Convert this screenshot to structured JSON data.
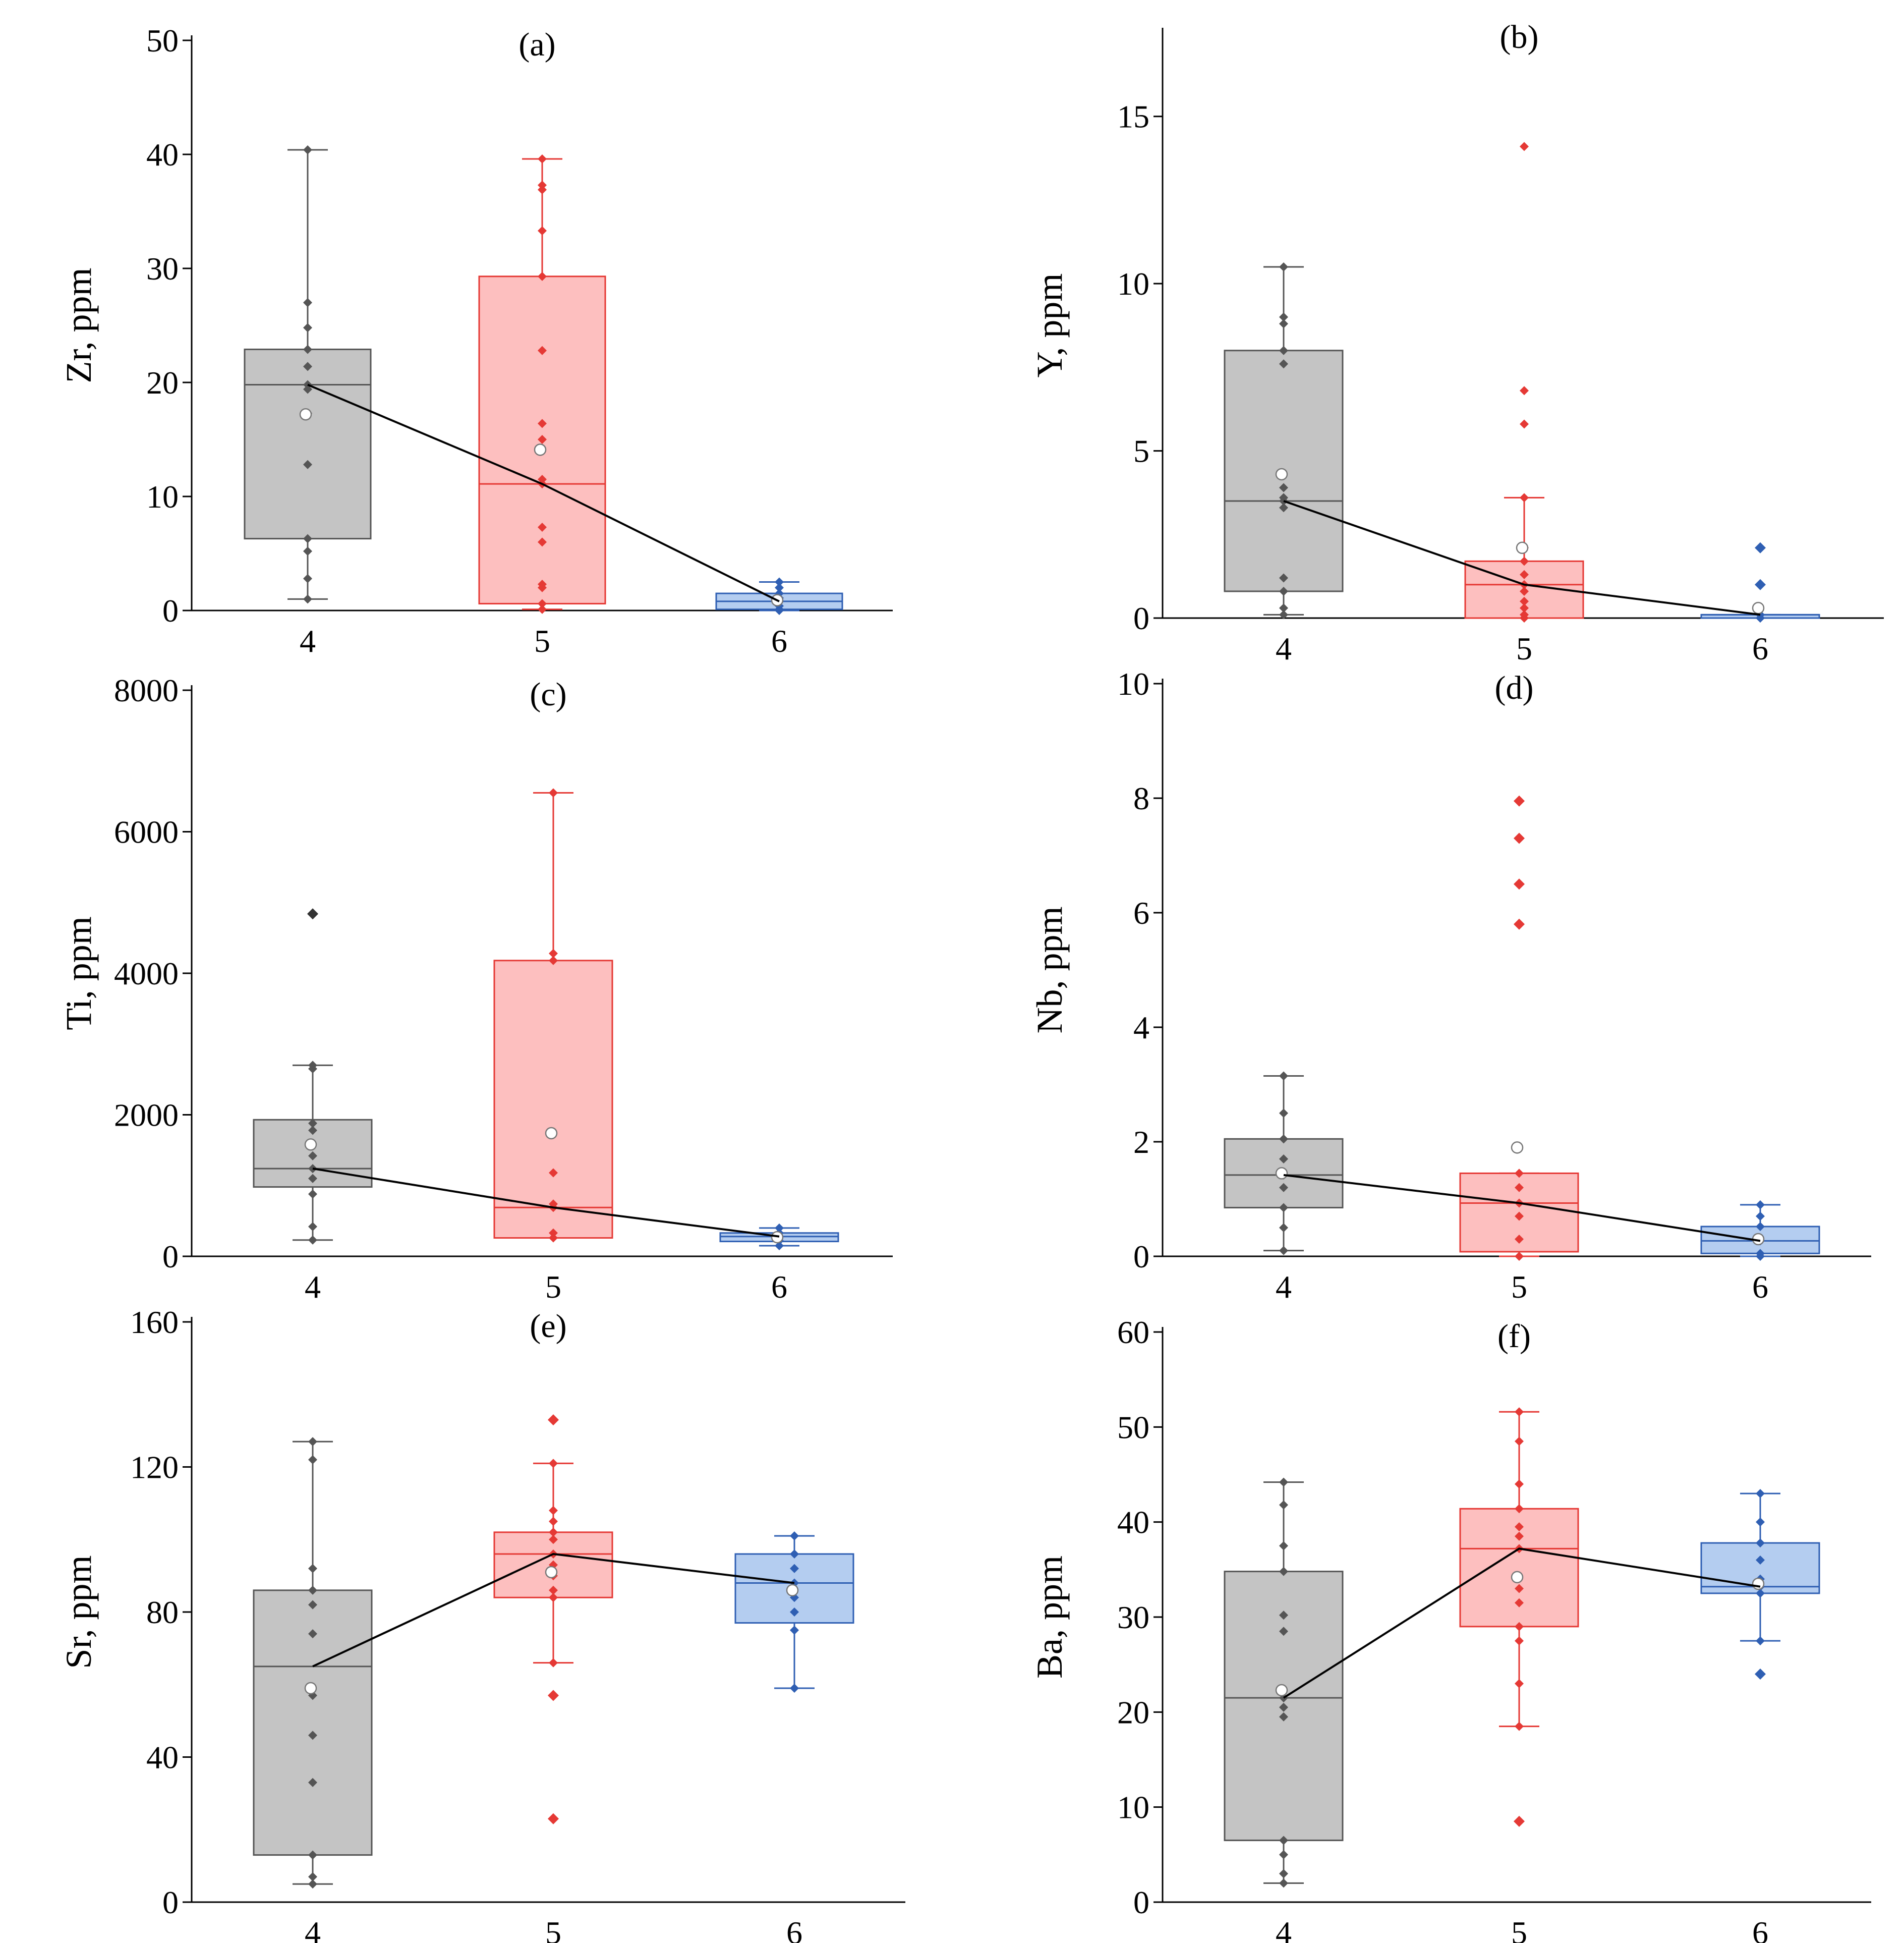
{
  "chart_data": [
    {
      "type": "box",
      "title": "(a)",
      "ylabel": "Zr, ppm",
      "categories": [
        "4",
        "5",
        "6"
      ],
      "yticks": [
        "0",
        "10",
        "20",
        "30",
        "40",
        "50"
      ],
      "ylim": [
        0,
        50
      ],
      "colors": {
        "4": "#555555",
        "5": "#e53935",
        "6": "#2f5fb3"
      },
      "fills": {
        "4": "#c4c4c4",
        "5": "#fdbfbf",
        "6": "#b4cdf0"
      },
      "boxes": [
        {
          "category": "4",
          "whisker_low": 1.0,
          "q1": 6.3,
          "median": 19.8,
          "q3": 22.9,
          "whisker_high": 40.4,
          "mean": 17.2,
          "points": [
            1.0,
            2.8,
            5.2,
            6.3,
            12.8,
            17.3,
            19.4,
            19.8,
            21.4,
            22.9,
            24.8,
            27.0,
            40.4
          ]
        },
        {
          "category": "5",
          "whisker_low": 0.1,
          "q1": 0.6,
          "median": 11.1,
          "q3": 29.3,
          "whisker_high": 39.6,
          "mean": 14.1,
          "points": [
            0.1,
            0.6,
            2.0,
            2.3,
            6.0,
            7.3,
            11.1,
            11.5,
            15.0,
            16.4,
            22.8,
            29.3,
            33.3,
            36.9,
            37.3,
            39.6
          ]
        },
        {
          "category": "6",
          "whisker_low": 0.0,
          "q1": 0.1,
          "median": 0.8,
          "q3": 1.5,
          "whisker_high": 2.5,
          "mean": 0.9,
          "points": [
            0.0,
            0.1,
            0.4,
            0.8,
            1.1,
            1.5,
            2.0,
            2.5
          ]
        }
      ],
      "mean_line": [
        19.8,
        11.1,
        0.8
      ]
    },
    {
      "type": "box",
      "title": "(b)",
      "ylabel": "Y, ppm",
      "categories": [
        "4",
        "5",
        "6"
      ],
      "yticks": [
        "0",
        "5",
        "10",
        "15"
      ],
      "ylim": [
        0,
        17.5
      ],
      "colors": {
        "4": "#555555",
        "5": "#e53935",
        "6": "#2f5fb3"
      },
      "fills": {
        "4": "#c4c4c4",
        "5": "#fdbfbf",
        "6": "#b4cdf0"
      },
      "boxes": [
        {
          "category": "4",
          "whisker_low": 0.1,
          "q1": 0.8,
          "median": 3.5,
          "q3": 8.0,
          "whisker_high": 10.5,
          "mean": 4.3,
          "points": [
            0.1,
            0.3,
            0.8,
            1.2,
            3.3,
            3.5,
            3.6,
            3.9,
            7.6,
            8.0,
            8.8,
            9.0,
            10.5
          ]
        },
        {
          "category": "5",
          "whisker_low": 0.0,
          "q1": 0.0,
          "median": 1.0,
          "q3": 1.7,
          "whisker_high": 3.6,
          "mean": 2.1,
          "points": [
            0.0,
            0.1,
            0.3,
            0.5,
            0.8,
            1.0,
            1.3,
            1.7,
            2.1,
            3.6,
            5.8,
            6.8,
            14.1
          ]
        },
        {
          "category": "6",
          "whisker_low": 0.0,
          "q1": 0.0,
          "median": 0.1,
          "q3": 0.1,
          "whisker_high": 0.1,
          "mean": 0.3,
          "points": [
            0.0,
            0.0,
            0.1,
            0.1
          ],
          "outliers": [
            1.0,
            2.1
          ]
        }
      ],
      "mean_line": [
        3.5,
        1.0,
        0.1
      ]
    },
    {
      "type": "box",
      "title": "(c)",
      "ylabel": "Ti, ppm",
      "categories": [
        "4",
        "5",
        "6"
      ],
      "yticks": [
        "0",
        "2000",
        "4000",
        "6000",
        "8000"
      ],
      "ylim": [
        0,
        8000
      ],
      "colors": {
        "4": "#555555",
        "5": "#e53935",
        "6": "#2f5fb3"
      },
      "fills": {
        "4": "#c4c4c4",
        "5": "#fdbfbf",
        "6": "#b4cdf0"
      },
      "boxes": [
        {
          "category": "4",
          "whisker_low": 230,
          "q1": 980,
          "median": 1240,
          "q3": 1930,
          "whisker_high": 2700,
          "mean": 1580,
          "points": [
            230,
            420,
            880,
            1100,
            1240,
            1420,
            1780,
            1880,
            2650,
            2700
          ],
          "outliers": [
            4840
          ]
        },
        {
          "category": "5",
          "whisker_low": 260,
          "q1": 260,
          "median": 690,
          "q3": 4180,
          "whisker_high": 6550,
          "mean": 1740,
          "points": [
            260,
            330,
            690,
            740,
            1180,
            4180,
            4280,
            6550
          ]
        },
        {
          "category": "6",
          "whisker_low": 150,
          "q1": 210,
          "median": 280,
          "q3": 330,
          "whisker_high": 400,
          "mean": 270,
          "points": [
            150,
            220,
            280,
            330,
            400
          ]
        }
      ],
      "mean_line": [
        1240,
        690,
        280
      ]
    },
    {
      "type": "box",
      "title": "(d)",
      "ylabel": "Nb, ppm",
      "categories": [
        "4",
        "5",
        "6"
      ],
      "yticks": [
        "0",
        "2",
        "4",
        "6",
        "8",
        "10"
      ],
      "ylim": [
        0,
        10
      ],
      "colors": {
        "4": "#555555",
        "5": "#e53935",
        "6": "#2f5fb3"
      },
      "fills": {
        "4": "#c4c4c4",
        "5": "#fdbfbf",
        "6": "#b4cdf0"
      },
      "boxes": [
        {
          "category": "4",
          "whisker_low": 0.1,
          "q1": 0.85,
          "median": 1.42,
          "q3": 2.05,
          "whisker_high": 3.15,
          "mean": 1.45,
          "points": [
            0.1,
            0.5,
            0.85,
            1.2,
            1.42,
            1.7,
            2.05,
            2.5,
            3.15
          ]
        },
        {
          "category": "5",
          "whisker_low": 0.0,
          "q1": 0.08,
          "median": 0.93,
          "q3": 1.45,
          "whisker_high": 1.45,
          "mean": 1.9,
          "points": [
            0.0,
            0.3,
            0.7,
            0.93,
            1.2,
            1.45
          ],
          "outliers": [
            5.8,
            6.5,
            7.3,
            7.95
          ]
        },
        {
          "category": "6",
          "whisker_low": 0.0,
          "q1": 0.05,
          "median": 0.27,
          "q3": 0.52,
          "whisker_high": 0.9,
          "mean": 0.3,
          "points": [
            0.0,
            0.05,
            0.27,
            0.52,
            0.7,
            0.9
          ]
        }
      ],
      "mean_line": [
        1.42,
        0.93,
        0.27
      ]
    },
    {
      "type": "box",
      "title": "(e)",
      "ylabel": "Sr, ppm",
      "categories": [
        "4",
        "5",
        "6"
      ],
      "yticks": [
        "0",
        "40",
        "80",
        "120",
        "160"
      ],
      "ylim": [
        0,
        160
      ],
      "colors": {
        "4": "#555555",
        "5": "#e53935",
        "6": "#2f5fb3"
      },
      "fills": {
        "4": "#c4c4c4",
        "5": "#fdbfbf",
        "6": "#b4cdf0"
      },
      "boxes": [
        {
          "category": "4",
          "whisker_low": 5,
          "q1": 13,
          "median": 65,
          "q3": 86,
          "whisker_high": 127,
          "mean": 59,
          "points": [
            5,
            7,
            13,
            33,
            46,
            57,
            74,
            82,
            86,
            92,
            122,
            127
          ]
        },
        {
          "category": "5",
          "whisker_low": 66,
          "q1": 84,
          "median": 96,
          "q3": 102,
          "whisker_high": 121,
          "mean": 91,
          "points": [
            66,
            84,
            86,
            90,
            93,
            96,
            100,
            102,
            105,
            108,
            121
          ],
          "outliers": [
            23,
            57,
            133
          ]
        },
        {
          "category": "6",
          "whisker_low": 59,
          "q1": 77,
          "median": 88,
          "q3": 96,
          "whisker_high": 101,
          "mean": 86,
          "points": [
            59,
            75,
            80,
            84,
            88,
            92,
            96,
            101
          ]
        }
      ],
      "mean_line": [
        65,
        96,
        88
      ]
    },
    {
      "type": "box",
      "title": "(f)",
      "ylabel": "Ba, ppm",
      "categories": [
        "4",
        "5",
        "6"
      ],
      "yticks": [
        "0",
        "10",
        "20",
        "30",
        "40",
        "50",
        "60"
      ],
      "ylim": [
        0,
        60
      ],
      "colors": {
        "4": "#555555",
        "5": "#e53935",
        "6": "#2f5fb3"
      },
      "fills": {
        "4": "#c4c4c4",
        "5": "#fdbfbf",
        "6": "#b4cdf0"
      },
      "boxes": [
        {
          "category": "4",
          "whisker_low": 2,
          "q1": 6.5,
          "median": 21.5,
          "q3": 34.8,
          "whisker_high": 44.2,
          "mean": 22.3,
          "points": [
            2,
            3,
            5,
            6.5,
            19.5,
            20.5,
            21.5,
            28.5,
            30.2,
            34.8,
            37.5,
            41.8,
            44.2
          ]
        },
        {
          "category": "5",
          "whisker_low": 18.5,
          "q1": 29,
          "median": 37.2,
          "q3": 41.4,
          "whisker_high": 51.6,
          "mean": 34.2,
          "points": [
            18.5,
            23,
            27.5,
            29,
            31.5,
            33,
            37.2,
            38.5,
            39.5,
            41.4,
            44,
            48.5,
            51.6
          ],
          "outliers": [
            8.5
          ]
        },
        {
          "category": "6",
          "whisker_low": 27.5,
          "q1": 32.5,
          "median": 33.2,
          "q3": 37.8,
          "whisker_high": 43,
          "mean": 33.5,
          "points": [
            27.5,
            32.5,
            33.2,
            34,
            36,
            37.8,
            40,
            43
          ],
          "outliers": [
            24
          ]
        }
      ],
      "mean_line": [
        21.5,
        37.2,
        33.2
      ]
    }
  ]
}
